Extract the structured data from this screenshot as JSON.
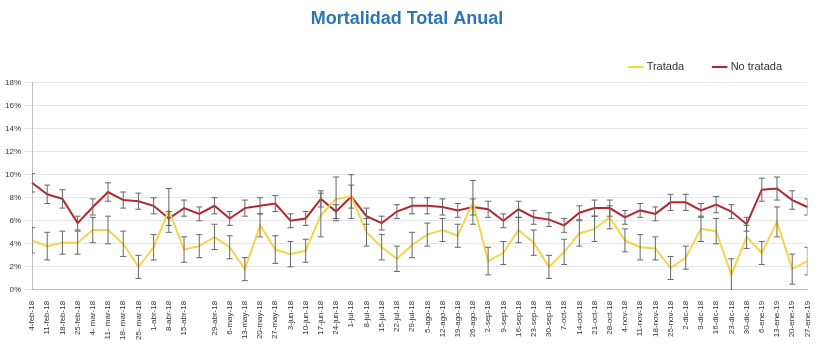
{
  "chart_data": {
    "type": "line",
    "title": "Mortalidad Total Anual",
    "categories": [
      "4-feb-18",
      "11-feb-18",
      "18-feb-18",
      "25-feb-18",
      "4- mar-18",
      "11- mar-18",
      "18- mar-18",
      "25- mar-18",
      "1-abr-18",
      "8-abr-18",
      "15-abr-18",
      null,
      "29-abr-18",
      "6-may-18",
      "13-may-18",
      "20-may-18",
      "27-may-18",
      "3-jun-18",
      "10-jun-18",
      "17-jun-18",
      "24-jun-18",
      "1-jul-18",
      "8-jul-18",
      "15-jul-18",
      "22-jul-18",
      "29-jul-18",
      "5-ago-18",
      "12-ago-18",
      "19-ago-18",
      "26-ago-18",
      "2-sep-18",
      "9-sep-18",
      "16-sep-18",
      "23-sep-18",
      "30-sep-18",
      "7-oct-18",
      "14-oct-18",
      "21-oct-18",
      "28-oct-18",
      "4-nov-18",
      "11-nov-18",
      "18-nov-18",
      "25-nov-18",
      "2-dic-18",
      "9-dic-18",
      "16-dic-18",
      "23-dic-18",
      "30-dic-18",
      "6-ene-19",
      "13-ene-19",
      "20-ene-19",
      "27-ene-19"
    ],
    "series": [
      {
        "name": "Tratada",
        "color": "#f5d547",
        "values": [
          4.3,
          3.8,
          4.1,
          4.1,
          5.2,
          5.2,
          4.0,
          2.0,
          3.7,
          6.9,
          3.5,
          3.8,
          4.6,
          3.7,
          1.8,
          5.6,
          3.5,
          3.1,
          3.4,
          6.5,
          7.9,
          8.1,
          5.0,
          3.7,
          2.7,
          3.9,
          4.8,
          5.2,
          4.7,
          7.6,
          2.5,
          3.2,
          5.2,
          4.1,
          2.0,
          3.3,
          4.9,
          5.3,
          6.3,
          4.3,
          3.7,
          3.6,
          1.9,
          2.8,
          5.3,
          5.1,
          1.3,
          4.6,
          3.2,
          5.9,
          1.8,
          2.5
        ],
        "errors": [
          1.1,
          1.2,
          1.0,
          1.0,
          1.1,
          1.2,
          1.1,
          1.0,
          1.1,
          1.9,
          1.1,
          1.0,
          1.1,
          1.0,
          1.0,
          1.0,
          1.2,
          1.1,
          1.0,
          1.9,
          1.9,
          1.9,
          1.2,
          1.1,
          1.1,
          1.1,
          1.0,
          1.0,
          1.0,
          1.9,
          1.2,
          1.0,
          1.1,
          1.1,
          1.0,
          1.1,
          1.1,
          1.1,
          1.0,
          1.0,
          1.1,
          1.0,
          1.0,
          1.0,
          1.1,
          1.1,
          1.4,
          1.0,
          1.0,
          1.3,
          1.3,
          1.2
        ]
      },
      {
        "name": "No tratada",
        "color": "#b5272d",
        "values": [
          9.3,
          8.3,
          7.9,
          5.8,
          7.2,
          8.5,
          7.8,
          7.7,
          7.3,
          6.2,
          7.1,
          6.6,
          7.3,
          6.2,
          7.1,
          7.3,
          7.5,
          6.0,
          6.2,
          7.9,
          6.8,
          8.1,
          6.4,
          5.8,
          6.8,
          7.3,
          7.3,
          7.2,
          6.9,
          7.2,
          7.0,
          6.0,
          7.0,
          6.3,
          6.1,
          5.6,
          6.7,
          7.1,
          7.1,
          6.3,
          6.9,
          6.6,
          7.6,
          7.6,
          6.9,
          7.4,
          6.8,
          5.7,
          8.7,
          8.8,
          7.8,
          7.2
        ],
        "errors": [
          0.8,
          0.8,
          0.8,
          0.6,
          0.7,
          0.8,
          0.7,
          0.7,
          0.7,
          0.6,
          0.7,
          0.6,
          0.7,
          0.6,
          0.7,
          0.7,
          0.7,
          0.6,
          0.6,
          0.7,
          0.6,
          1.0,
          0.7,
          0.6,
          0.6,
          0.7,
          0.7,
          0.7,
          0.6,
          0.7,
          0.7,
          0.6,
          0.7,
          0.6,
          0.6,
          0.6,
          0.6,
          0.7,
          0.7,
          0.6,
          0.6,
          0.6,
          0.7,
          0.7,
          0.6,
          0.7,
          0.6,
          0.6,
          1.0,
          1.0,
          0.8,
          0.7
        ]
      }
    ],
    "ylim": [
      0,
      18
    ],
    "yticks": [
      {
        "value": 0,
        "label": "0%"
      },
      {
        "value": 2,
        "label": "2%"
      },
      {
        "value": 4,
        "label": "4%"
      },
      {
        "value": 6,
        "label": "6%"
      },
      {
        "value": 8,
        "label": "8%"
      },
      {
        "value": 10,
        "label": "10%"
      },
      {
        "value": 12,
        "label": "12%"
      },
      {
        "value": 14,
        "label": "14%"
      },
      {
        "value": 16,
        "label": "16%"
      },
      {
        "value": 18,
        "label": "18%"
      }
    ],
    "grid": true,
    "legend": "top"
  }
}
